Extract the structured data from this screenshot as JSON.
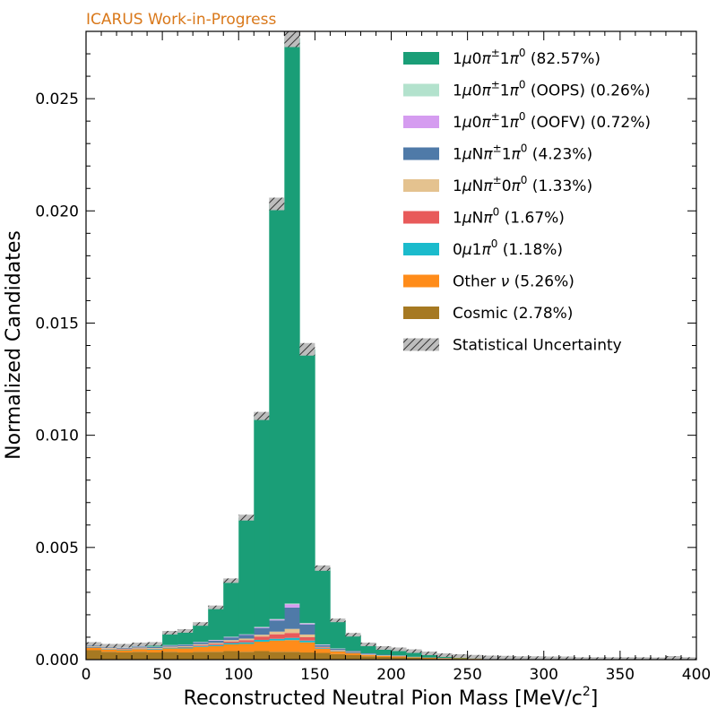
{
  "chart_data": {
    "type": "bar",
    "banner": "ICARUS Work-in-Progress",
    "banner_color": "#d9781a",
    "xlabel_main": "Reconstructed Neutral Pion Mass [MeV/c",
    "xlabel_sup": "2",
    "xlabel_end": "]",
    "ylabel": "Normalized Candidates",
    "xlim": [
      0,
      400
    ],
    "ylim": [
      0,
      0.028
    ],
    "xticks": [
      0,
      50,
      100,
      150,
      200,
      250,
      300,
      350,
      400
    ],
    "xtick_labels": [
      "0",
      "50",
      "100",
      "150",
      "200",
      "250",
      "300",
      "350",
      "400"
    ],
    "yticks": [
      0,
      0.005,
      0.01,
      0.015,
      0.02,
      0.025
    ],
    "ytick_labels": [
      "0.000",
      "0.005",
      "0.010",
      "0.015",
      "0.020",
      "0.025"
    ],
    "bin_width": 10,
    "bin_edges_start": [
      0,
      10,
      20,
      30,
      40,
      50,
      60,
      70,
      80,
      90,
      100,
      110,
      120,
      130,
      140,
      150,
      160,
      170,
      180,
      190,
      200,
      210,
      220,
      230,
      240,
      250,
      260,
      270,
      280,
      290,
      300,
      310,
      320,
      330,
      340,
      350,
      360,
      370,
      380,
      390
    ],
    "series": [
      {
        "key": "cosmic",
        "color": "#a67922",
        "values": [
          0.00042,
          0.00035,
          0.00032,
          0.00035,
          0.00032,
          0.00035,
          0.00032,
          0.00035,
          0.00035,
          0.00038,
          0.00035,
          0.00038,
          0.00035,
          0.00035,
          0.00032,
          0.0003,
          0.00025,
          0.0002,
          0.00015,
          0.00012,
          0.0001,
          8e-05,
          6e-05,
          5e-05,
          4e-05,
          3e-05,
          3e-05,
          3e-05,
          2e-05,
          2e-05,
          2e-05,
          2e-05,
          1e-05,
          1e-05,
          1e-05,
          1e-05,
          1e-05,
          1e-05,
          1e-05,
          1e-05
        ]
      },
      {
        "key": "other_nu",
        "color": "#ff8c1a",
        "values": [
          0.0001,
          0.0001,
          0.0001,
          0.00012,
          0.00012,
          0.00015,
          0.00018,
          0.00022,
          0.00025,
          0.0003,
          0.00035,
          0.00042,
          0.0005,
          0.00052,
          0.00045,
          0.00018,
          0.00012,
          8e-05,
          6e-05,
          5e-05,
          4e-05,
          3e-05,
          3e-05,
          2e-05,
          2e-05,
          2e-05,
          1e-05,
          1e-05,
          1e-05,
          1e-05,
          1e-05,
          1e-05,
          0.0,
          0.0,
          0.0,
          0.0,
          0.0,
          0.0,
          6e-05,
          1e-05
        ]
      },
      {
        "key": "zero_mu",
        "color": "#1bbbcc",
        "values": [
          2e-05,
          2e-05,
          2e-05,
          2e-05,
          3e-05,
          3e-05,
          4e-05,
          4e-05,
          5e-05,
          6e-05,
          7e-05,
          8e-05,
          8e-05,
          0.0001,
          8e-05,
          3e-05,
          2e-05,
          2e-05,
          1e-05,
          1e-05,
          1e-05,
          1e-05,
          0.0,
          0.0,
          0.0,
          0.0,
          0.0,
          0.0,
          0.0,
          0.0,
          0.0,
          0.0,
          0.0,
          0.0,
          0.0,
          0.0,
          0.0,
          0.0,
          0.0,
          0.0
        ]
      },
      {
        "key": "mu_n_pi0",
        "color": "#e85a5a",
        "values": [
          2e-05,
          2e-05,
          2e-05,
          2e-05,
          2e-05,
          2e-05,
          3e-05,
          4e-05,
          5e-05,
          7e-05,
          0.0001,
          0.00015,
          0.0002,
          0.00022,
          0.00015,
          3e-05,
          2e-05,
          2e-05,
          1e-05,
          1e-05,
          1e-05,
          0.0,
          0.0,
          0.0,
          0.0,
          0.0,
          0.0,
          0.0,
          0.0,
          0.0,
          0.0,
          0.0,
          0.0,
          0.0,
          0.0,
          0.0,
          0.0,
          0.0,
          0.0,
          0.0
        ]
      },
      {
        "key": "mu_n_pipm_0pi0",
        "color": "#e4c28f",
        "values": [
          3e-05,
          3e-05,
          3e-05,
          3e-05,
          3e-05,
          3e-05,
          3e-05,
          4e-05,
          5e-05,
          6e-05,
          7e-05,
          8e-05,
          0.00012,
          0.00018,
          0.00012,
          3e-05,
          2e-05,
          2e-05,
          1e-05,
          1e-05,
          1e-05,
          0.0,
          0.0,
          0.0,
          0.0,
          0.0,
          0.0,
          0.0,
          0.0,
          0.0,
          0.0,
          0.0,
          0.0,
          0.0,
          0.0,
          0.0,
          0.0,
          0.0,
          0.0,
          0.0
        ]
      },
      {
        "key": "mu_n_pipm_1pi0",
        "color": "#4f7aa8",
        "values": [
          4e-05,
          3e-05,
          3e-05,
          4e-05,
          4e-05,
          5e-05,
          6e-05,
          8e-05,
          0.0001,
          0.00012,
          0.00016,
          0.0003,
          0.0005,
          0.00095,
          0.00045,
          8e-05,
          5e-05,
          4e-05,
          3e-05,
          2e-05,
          2e-05,
          1e-05,
          1e-05,
          1e-05,
          0.0,
          0.0,
          0.0,
          0.0,
          0.0,
          0.0,
          0.0,
          0.0,
          0.0,
          0.0,
          0.0,
          0.0,
          0.0,
          0.0,
          0.0,
          0.0
        ]
      },
      {
        "key": "oofv",
        "color": "#d59cf0",
        "values": [
          1e-05,
          1e-05,
          1e-05,
          1e-05,
          1e-05,
          1e-05,
          1e-05,
          1e-05,
          2e-05,
          2e-05,
          2e-05,
          3e-05,
          4e-05,
          0.00015,
          4e-05,
          2e-05,
          1e-05,
          1e-05,
          1e-05,
          0.0,
          0.0,
          0.0,
          0.0,
          0.0,
          0.0,
          0.0,
          0.0,
          0.0,
          0.0,
          0.0,
          0.0,
          0.0,
          0.0,
          0.0,
          0.0,
          0.0,
          0.0,
          0.0,
          0.0,
          0.0
        ]
      },
      {
        "key": "oops",
        "color": "#b3e2cd",
        "values": [
          1e-05,
          1e-05,
          1e-05,
          1e-05,
          1e-05,
          1e-05,
          1e-05,
          1e-05,
          1e-05,
          1e-05,
          1e-05,
          2e-05,
          2e-05,
          3e-05,
          2e-05,
          1e-05,
          1e-05,
          0.0,
          0.0,
          0.0,
          0.0,
          0.0,
          0.0,
          0.0,
          0.0,
          0.0,
          0.0,
          0.0,
          0.0,
          0.0,
          0.0,
          0.0,
          0.0,
          0.0,
          0.0,
          0.0,
          0.0,
          0.0,
          0.0,
          0.0
        ]
      },
      {
        "key": "signal",
        "color": "#1a9e77",
        "values": [
          5e-05,
          5e-05,
          8e-05,
          8e-05,
          0.00012,
          0.00055,
          0.0006,
          0.0008,
          0.00145,
          0.0025,
          0.0052,
          0.0094,
          0.0185,
          0.0252,
          0.0122,
          0.0034,
          0.00125,
          0.00072,
          0.0004,
          0.0003,
          0.00027,
          0.00025,
          0.00018,
          0.00012,
          0.0001,
          8e-05,
          6e-05,
          5e-05,
          4e-05,
          4e-05,
          3e-05,
          3e-05,
          2e-05,
          2e-05,
          2e-05,
          2e-05,
          2e-05,
          1e-05,
          1e-05,
          1e-05
        ]
      }
    ],
    "uncertainty": [
      4e-05,
      4e-05,
      4e-05,
      4e-05,
      4e-05,
      5e-05,
      5e-05,
      6e-05,
      8e-05,
      0.0001,
      0.00013,
      0.00018,
      0.00028,
      0.0004,
      0.00028,
      0.00012,
      8e-05,
      6e-05,
      5e-05,
      4e-05,
      4e-05,
      3e-05,
      3e-05,
      3e-05,
      2e-05,
      2e-05,
      2e-05,
      2e-05,
      2e-05,
      2e-05,
      2e-05,
      2e-05,
      1e-05,
      1e-05,
      1e-05,
      1e-05,
      1e-05,
      1e-05,
      2e-05,
      1e-05
    ],
    "legend_position": "top-right",
    "legend": [
      {
        "key": "signal",
        "color": "#1a9e77",
        "label": "1μ0π±1π0 (82.57%)",
        "hatch": false
      },
      {
        "key": "oops",
        "color": "#b3e2cd",
        "label": "1μ0π±1π0 (OOPS) (0.26%)",
        "hatch": false
      },
      {
        "key": "oofv",
        "color": "#d59cf0",
        "label": "1μ0π±1π0 (OOFV) (0.72%)",
        "hatch": false
      },
      {
        "key": "mu_n_pipm_1pi0",
        "color": "#4f7aa8",
        "label": "1μNπ±1π0 (4.23%)",
        "hatch": false
      },
      {
        "key": "mu_n_pipm_0pi0",
        "color": "#e4c28f",
        "label": "1μNπ±0π0 (1.33%)",
        "hatch": false
      },
      {
        "key": "mu_n_pi0",
        "color": "#e85a5a",
        "label": "1μNπ0 (1.67%)",
        "hatch": false
      },
      {
        "key": "zero_mu",
        "color": "#1bbbcc",
        "label": "0μ1π0 (1.18%)",
        "hatch": false
      },
      {
        "key": "other_nu",
        "color": "#ff8c1a",
        "label": "Other ν (5.26%)",
        "hatch": false
      },
      {
        "key": "cosmic",
        "color": "#a67922",
        "label": "Cosmic (2.78%)",
        "hatch": false
      },
      {
        "key": "stat",
        "color": "#bbbbbb",
        "label": "Statistical Uncertainty",
        "hatch": true
      }
    ]
  }
}
